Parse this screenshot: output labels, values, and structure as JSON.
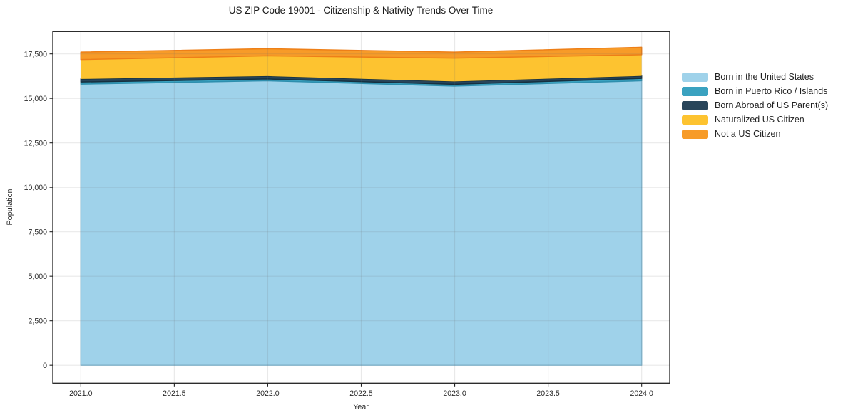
{
  "title": "US ZIP Code 19001 - Citizenship & Nativity Trends Over Time",
  "text_color": "#2b2b2b",
  "spine_color": "#222222",
  "gridline_color": "rgba(110,110,110,0.15)",
  "chart_data": {
    "type": "area",
    "stacked": true,
    "title": "US ZIP Code 19001 - Citizenship & Nativity Trends Over Time",
    "xlabel": "Year",
    "ylabel": "Population",
    "x": [
      2021,
      2022,
      2023,
      2024
    ],
    "series": [
      {
        "name": "Born in the United States",
        "color": "#9fd2ea",
        "edge": "#85bcd6",
        "values": [
          15800,
          15990,
          15690,
          15990
        ]
      },
      {
        "name": "Born in Puerto Rico / Islands",
        "color": "#3aa2c0",
        "edge": "#2e8fae",
        "values": [
          120,
          100,
          100,
          130
        ]
      },
      {
        "name": "Born Abroad of US Parent(s)",
        "color": "#28455a",
        "edge": "#16303f",
        "values": [
          170,
          160,
          160,
          140
        ]
      },
      {
        "name": "Naturalized US Citizen",
        "color": "#fdc330",
        "edge": null,
        "values": [
          1090,
          1140,
          1310,
          1190
        ]
      },
      {
        "name": "Not a US Citizen",
        "color": "#f79b28",
        "edge": "#ee7f17",
        "values": [
          420,
          400,
          340,
          420
        ]
      }
    ],
    "totals": [
      17600,
      17790,
      17600,
      17870
    ],
    "xlim": [
      2020.85,
      2024.15
    ],
    "ylim": [
      -1005,
      18755
    ],
    "x_ticks": {
      "values": [
        2021,
        2021.5,
        2022,
        2022.5,
        2023,
        2023.5,
        2024
      ],
      "labels": [
        "2021.0",
        "2021.5",
        "2022.0",
        "2022.5",
        "2023.0",
        "2023.5",
        "2024.0"
      ]
    },
    "y_ticks": {
      "values": [
        0,
        2500,
        5000,
        7500,
        10000,
        12500,
        15000,
        17500
      ],
      "labels": [
        "0",
        "2,500",
        "5,000",
        "7,500",
        "10,000",
        "12,500",
        "15,000",
        "17,500"
      ]
    },
    "grid": true,
    "legend_position": "right"
  }
}
